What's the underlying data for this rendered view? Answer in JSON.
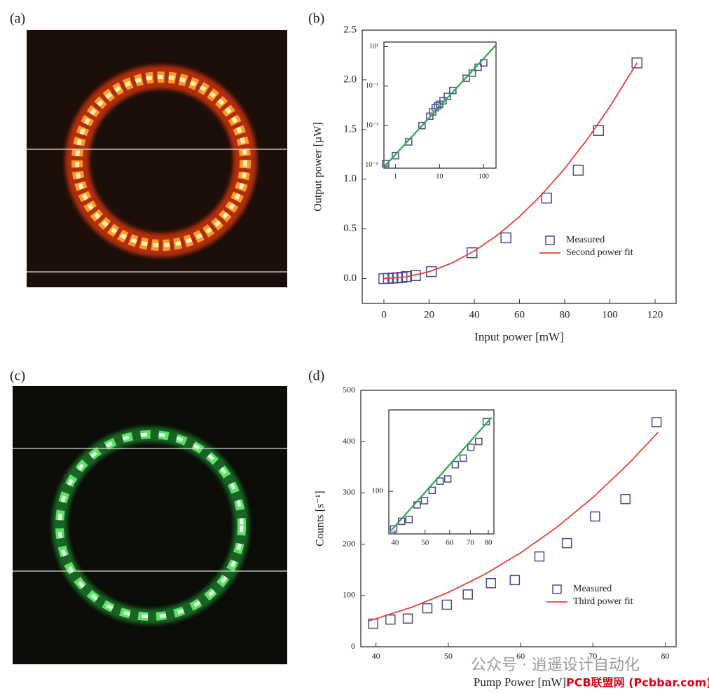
{
  "panels": [
    "(a)",
    "(b)",
    "(c)",
    "(d)"
  ],
  "watermarks": [
    "公众号 · 逍遥设计自动化",
    "PCB联盟网 (Pcbbar.com)"
  ],
  "chart_data": [
    {
      "type": "scatter",
      "xlabel": "Input power [mW]",
      "ylabel": "Output power [µW]",
      "xlim": [
        -9.6,
        129.3
      ],
      "ylim": [
        -0.25,
        2.5
      ],
      "xticks": [
        0,
        20,
        40,
        60,
        80,
        100,
        120
      ],
      "yticks": [
        {
          "value": 0,
          "label": "0.0"
        },
        {
          "value": 0.5,
          "label": "0.5"
        },
        {
          "value": 1,
          "label": "1.0"
        },
        {
          "value": 1.5,
          "label": "1.5"
        },
        {
          "value": 2,
          "label": "2.0"
        },
        {
          "value": 2.5,
          "label": "2.5"
        }
      ],
      "legend": "lower right",
      "series": [
        {
          "name": "Measured",
          "color": "#4b4b8f",
          "marker": "square",
          "x": [
            0,
            2,
            4,
            6,
            8,
            10,
            14,
            21,
            39,
            54,
            72,
            86,
            95,
            112
          ],
          "values": [
            0,
            0.002,
            0.005,
            0.008,
            0.012,
            0.02,
            0.03,
            0.07,
            0.26,
            0.41,
            0.81,
            1.09,
            1.49,
            2.17
          ]
        },
        {
          "name": "Second power fit",
          "color": "#e8403a",
          "marker": "line",
          "x": [
            0,
            10,
            20,
            30,
            40,
            50,
            60,
            70,
            80,
            90,
            100,
            112
          ],
          "values": [
            0,
            0.017,
            0.069,
            0.156,
            0.277,
            0.433,
            0.623,
            0.848,
            1.107,
            1.401,
            1.73,
            2.17
          ]
        }
      ]
    },
    {
      "type": "scatter",
      "xscale": "log",
      "yscale": "log",
      "xlim": [
        0.55,
        190
      ],
      "ylim": [
        7e-06,
        17
      ],
      "xticks": [
        1,
        10,
        100
      ],
      "yticks": [
        {
          "value": 1e-05,
          "label": "10⁻⁵"
        },
        {
          "value": 0.001,
          "label": "10⁻³"
        },
        {
          "value": 0.1,
          "label": "10⁻¹"
        },
        {
          "value": 10,
          "label": "10¹"
        }
      ],
      "series": [
        {
          "color": "#4b4b8f",
          "marker": "square",
          "x": [
            0.6,
            1,
            2,
            4,
            6,
            7,
            8,
            9,
            10,
            12,
            15,
            20,
            40,
            55,
            75,
            100
          ],
          "values": [
            1.2e-05,
            3e-05,
            0.00015,
            0.001,
            0.003,
            0.005,
            0.008,
            0.01,
            0.012,
            0.018,
            0.03,
            0.06,
            0.25,
            0.45,
            0.9,
            1.5
          ]
        },
        {
          "color": "#2aa84a",
          "marker": "line",
          "x": [
            0.55,
            190
          ],
          "values": [
            8e-06,
            12
          ]
        }
      ]
    },
    {
      "type": "scatter",
      "xlabel": "Pump Power [mW]",
      "ylabel": "Counts [s⁻¹]",
      "xlim": [
        37.9,
        81.5
      ],
      "ylim": [
        0,
        500
      ],
      "xticks": [
        40,
        50,
        60,
        70,
        80
      ],
      "yticks": [
        0,
        100,
        200,
        300,
        400,
        500
      ],
      "legend": "lower right",
      "series": [
        {
          "name": "Measured",
          "color": "#4b4b8f",
          "marker": "square",
          "x": [
            39.6,
            42,
            44.4,
            47.1,
            49.8,
            52.7,
            55.9,
            59.2,
            62.6,
            66.4,
            70.3,
            74.5,
            78.8
          ],
          "values": [
            45,
            53,
            55,
            75,
            82,
            102,
            124,
            130,
            176,
            202,
            254,
            288,
            438
          ]
        },
        {
          "name": "Third power fit",
          "color": "#e8403a",
          "marker": "line",
          "x": [
            39,
            45,
            50,
            55,
            60,
            65,
            70,
            75,
            79
          ],
          "values": [
            50.3,
            77.3,
            106,
            141,
            183,
            233,
            291,
            358,
            418
          ]
        }
      ]
    },
    {
      "type": "scatter",
      "xscale": "log",
      "yscale": "log",
      "xlim": [
        38.2,
        83.4
      ],
      "ylim": [
        40.5,
        562
      ],
      "xticks": [
        40,
        50,
        60,
        70,
        80
      ],
      "yticks": [
        100
      ],
      "series": [
        {
          "color": "#4b4b8f",
          "marker": "square",
          "x": [
            39.6,
            42,
            44.4,
            47.1,
            49.8,
            52.7,
            55.9,
            59.2,
            62.6,
            66.4,
            70.3,
            74.5,
            78.8
          ],
          "values": [
            45,
            53,
            55,
            75,
            82,
            102,
            124,
            130,
            176,
            202,
            254,
            288,
            438
          ]
        },
        {
          "color": "#2aa84a",
          "marker": "line",
          "x": [
            39,
            82
          ],
          "values": [
            44,
            480
          ]
        }
      ]
    }
  ]
}
